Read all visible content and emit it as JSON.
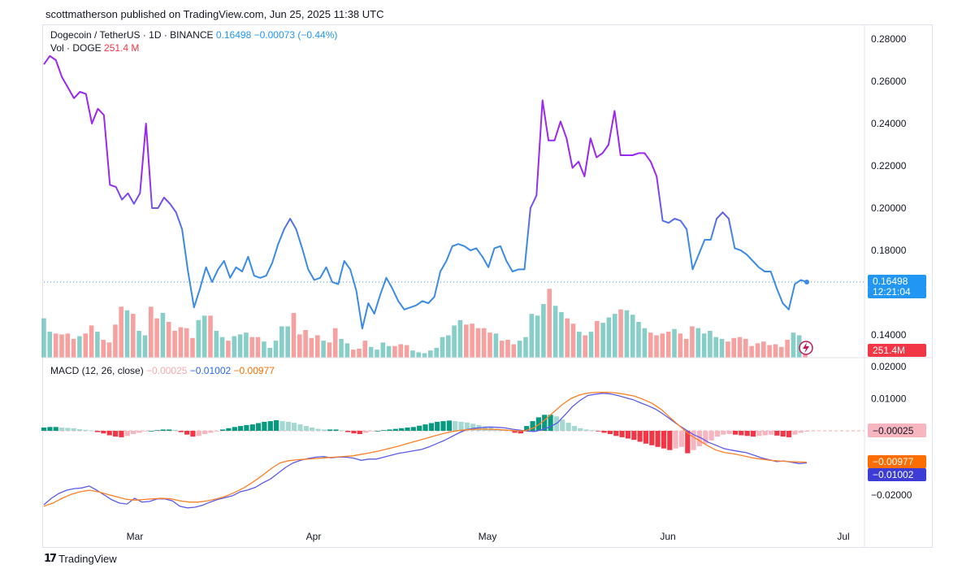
{
  "publisher": "scottmatherson published on TradingView.com, Jun 25, 2025 11:38 UTC",
  "footer": {
    "brand": "TradingView",
    "mark": "17"
  },
  "legend": {
    "symbol": "Dogecoin / TetherUS · 1D · BINANCE",
    "last": "0.16498",
    "change": "−0.00073 (−0.44%)",
    "vol_label": "Vol · DOGE",
    "vol_value": "251.4 M",
    "macd_label": "MACD (12, 26, close)",
    "macd_hist": "−0.00025",
    "macd_line": "−0.01002",
    "macd_signal": "−0.00977"
  },
  "badges": {
    "price": "0.16498",
    "countdown": "12:21:04",
    "volume": "251.4M",
    "macd_hist": "−0.00025",
    "macd_signal": "−0.00977",
    "macd_line": "−0.01002"
  },
  "colors": {
    "price_high": "#9c27f0",
    "price_low": "#3a8be6",
    "up": "#26a69a",
    "down": "#ef5350",
    "macd_line": "#5b5bea",
    "signal_line": "#ff7f24",
    "hist_up": "#089981",
    "hist_down": "#f23645"
  },
  "chart_data": [
    {
      "type": "line",
      "name": "price",
      "x_labels": [
        "Mar",
        "Apr",
        "May",
        "Jun",
        "Jul"
      ],
      "ylim": [
        0.13,
        0.285
      ],
      "yticks": [
        "0.28000",
        "0.26000",
        "0.24000",
        "0.22000",
        "0.20000",
        "0.18000",
        "0.14000"
      ],
      "last_value": 0.16498,
      "values": [
        0.268,
        0.272,
        0.27,
        0.262,
        0.257,
        0.252,
        0.255,
        0.254,
        0.24,
        0.247,
        0.244,
        0.211,
        0.21,
        0.204,
        0.207,
        0.202,
        0.207,
        0.24,
        0.2,
        0.2,
        0.205,
        0.202,
        0.198,
        0.19,
        0.17,
        0.153,
        0.162,
        0.172,
        0.165,
        0.171,
        0.175,
        0.167,
        0.172,
        0.17,
        0.177,
        0.168,
        0.167,
        0.168,
        0.174,
        0.183,
        0.19,
        0.195,
        0.19,
        0.181,
        0.171,
        0.166,
        0.167,
        0.172,
        0.165,
        0.164,
        0.175,
        0.171,
        0.161,
        0.143,
        0.155,
        0.15,
        0.159,
        0.167,
        0.162,
        0.156,
        0.152,
        0.153,
        0.154,
        0.156,
        0.155,
        0.158,
        0.17,
        0.175,
        0.182,
        0.183,
        0.182,
        0.18,
        0.181,
        0.177,
        0.172,
        0.181,
        0.182,
        0.175,
        0.17,
        0.171,
        0.171,
        0.2,
        0.206,
        0.251,
        0.232,
        0.232,
        0.241,
        0.233,
        0.219,
        0.222,
        0.215,
        0.233,
        0.224,
        0.226,
        0.23,
        0.246,
        0.225,
        0.225,
        0.225,
        0.226,
        0.226,
        0.222,
        0.215,
        0.194,
        0.193,
        0.195,
        0.194,
        0.19,
        0.171,
        0.178,
        0.185,
        0.185,
        0.195,
        0.198,
        0.195,
        0.181,
        0.18,
        0.178,
        0.175,
        0.172,
        0.17,
        0.17,
        0.162,
        0.155,
        0.152,
        0.164,
        0.166,
        0.165
      ]
    },
    {
      "type": "bar",
      "name": "volume",
      "values": [
        44,
        29,
        27,
        26,
        27,
        21,
        24,
        27,
        36,
        29,
        20,
        17,
        37,
        57,
        53,
        49,
        30,
        25,
        57,
        44,
        50,
        40,
        30,
        34,
        33,
        22,
        42,
        47,
        47,
        30,
        23,
        19,
        24,
        26,
        28,
        23,
        23,
        18,
        11,
        19,
        35,
        35,
        50,
        26,
        31,
        22,
        25,
        19,
        17,
        33,
        21,
        16,
        9,
        10,
        19,
        12,
        9,
        17,
        13,
        13,
        15,
        14,
        8,
        6,
        5,
        8,
        11,
        23,
        25,
        36,
        42,
        37,
        38,
        33,
        33,
        28,
        27,
        19,
        20,
        15,
        19,
        23,
        49,
        47,
        60,
        77,
        58,
        51,
        44,
        38,
        29,
        25,
        29,
        41,
        39,
        45,
        49,
        54,
        53,
        48,
        40,
        33,
        28,
        25,
        27,
        29,
        32,
        27,
        21,
        35,
        33,
        27,
        30,
        23,
        21,
        18,
        22,
        23,
        21,
        13,
        16,
        18,
        14,
        15,
        12,
        20,
        28,
        25,
        15
      ]
    },
    {
      "type": "bar",
      "name": "macd_histogram",
      "ylim": [
        -0.0245,
        0.0215
      ],
      "yticks": [
        "0.02000",
        "0.01000",
        "−0.02000"
      ],
      "values": [
        0.001,
        0.0012,
        0.0012,
        0.001,
        0.0009,
        0.0008,
        0.0005,
        0.0003,
        0.0001,
        -0.0004,
        -0.0008,
        -0.0014,
        -0.0018,
        -0.002,
        -0.0016,
        -0.001,
        -0.0006,
        -0.0002,
        0.0,
        0.0002,
        0.0004,
        0.0004,
        0.0003,
        -0.0004,
        -0.0012,
        -0.0018,
        -0.0016,
        -0.001,
        -0.0006,
        -0.0002,
        0.0004,
        0.0008,
        0.0012,
        0.0015,
        0.0018,
        0.002,
        0.0024,
        0.0028,
        0.003,
        0.0033,
        0.003,
        0.0028,
        0.0025,
        0.002,
        0.0015,
        0.001,
        0.0006,
        0.0004,
        0.0004,
        0.0004,
        0.0002,
        -0.0004,
        -0.0008,
        -0.001,
        -0.0006,
        -0.0002,
        0.0,
        0.0002,
        0.0004,
        0.0006,
        0.0008,
        0.001,
        0.0012,
        0.0016,
        0.002,
        0.0024,
        0.0028,
        0.003,
        0.0032,
        0.003,
        0.0028,
        0.0026,
        0.0022,
        0.0018,
        0.0014,
        0.001,
        0.0006,
        0.0004,
        0.0002,
        -0.0006,
        -0.0008,
        0.0015,
        0.003,
        0.0042,
        0.005,
        0.005,
        0.0045,
        0.0035,
        0.0025,
        0.0015,
        0.0008,
        0.0004,
        0.0002,
        -0.0002,
        -0.0006,
        -0.001,
        -0.0016,
        -0.002,
        -0.0024,
        -0.0028,
        -0.0034,
        -0.004,
        -0.0045,
        -0.005,
        -0.0055,
        -0.006,
        -0.0055,
        -0.005,
        -0.007,
        -0.006,
        -0.0048,
        -0.004,
        -0.003,
        -0.0018,
        -0.0012,
        -0.001,
        -0.0012,
        -0.0014,
        -0.0016,
        -0.0018,
        -0.0016,
        -0.0014,
        -0.0012,
        -0.0015,
        -0.0018,
        -0.002,
        -0.0012,
        -0.0006,
        -0.00025
      ]
    },
    {
      "type": "line",
      "name": "macd_line",
      "values": [
        -0.023,
        -0.021,
        -0.0195,
        -0.0185,
        -0.018,
        -0.0178,
        -0.0172,
        -0.0185,
        -0.02,
        -0.0215,
        -0.0225,
        -0.0228,
        -0.021,
        -0.0222,
        -0.022,
        -0.0212,
        -0.0212,
        -0.0218,
        -0.0235,
        -0.024,
        -0.0238,
        -0.0232,
        -0.0222,
        -0.0214,
        -0.0208,
        -0.0202,
        -0.019,
        -0.0184,
        -0.0176,
        -0.0162,
        -0.015,
        -0.0132,
        -0.0114,
        -0.01,
        -0.0092,
        -0.0086,
        -0.0082,
        -0.008,
        -0.0084,
        -0.0082,
        -0.0082,
        -0.0085,
        -0.0092,
        -0.0088,
        -0.0088,
        -0.0082,
        -0.0076,
        -0.007,
        -0.0066,
        -0.0062,
        -0.0058,
        -0.005,
        -0.004,
        -0.003,
        -0.0018,
        -0.0006,
        0.0004,
        0.0008,
        0.001,
        0.0012,
        0.0011,
        0.0009,
        0.0005,
        0.0002,
        -0.0001,
        -0.0002,
        0.0004,
        0.0012,
        0.0025,
        0.005,
        0.0076,
        0.0095,
        0.011,
        0.0114,
        0.0117,
        0.0115,
        0.011,
        0.0103,
        0.0097,
        0.0087,
        0.0078,
        0.0067,
        0.0052,
        0.0035,
        0.0018,
        0.0003,
        -0.0012,
        -0.0022,
        -0.0036,
        -0.0045,
        -0.0055,
        -0.006,
        -0.0064,
        -0.0068,
        -0.0076,
        -0.0084,
        -0.009,
        -0.0096,
        -0.0094,
        -0.0098,
        -0.0102,
        -0.01
      ]
    },
    {
      "type": "line",
      "name": "signal_line",
      "values": [
        -0.0235,
        -0.0225,
        -0.021,
        -0.0198,
        -0.019,
        -0.0185,
        -0.019,
        -0.0198,
        -0.0205,
        -0.0213,
        -0.0216,
        -0.0214,
        -0.0212,
        -0.021,
        -0.0212,
        -0.0218,
        -0.0222,
        -0.0222,
        -0.0218,
        -0.0212,
        -0.0204,
        -0.0192,
        -0.0178,
        -0.016,
        -0.014,
        -0.0118,
        -0.01,
        -0.0093,
        -0.009,
        -0.0088,
        -0.0086,
        -0.0084,
        -0.0082,
        -0.008,
        -0.0078,
        -0.0073,
        -0.0068,
        -0.0062,
        -0.0055,
        -0.0048,
        -0.004,
        -0.0032,
        -0.0024,
        -0.0016,
        -0.0008,
        -0.0002,
        0.0002,
        0.0004,
        0.0005,
        0.0005,
        0.0004,
        0.0002,
        0.0,
        0.0,
        0.001,
        0.003,
        0.0055,
        0.008,
        0.01,
        0.0112,
        0.0118,
        0.012,
        0.012,
        0.0118,
        0.0114,
        0.0108,
        0.0098,
        0.0085,
        0.0066,
        0.004,
        0.0015,
        -0.001,
        -0.0028,
        -0.0045,
        -0.006,
        -0.0068,
        -0.0072,
        -0.0078,
        -0.0084,
        -0.0088,
        -0.0092,
        -0.0094,
        -0.0096,
        -0.0097,
        -0.0098
      ]
    }
  ]
}
